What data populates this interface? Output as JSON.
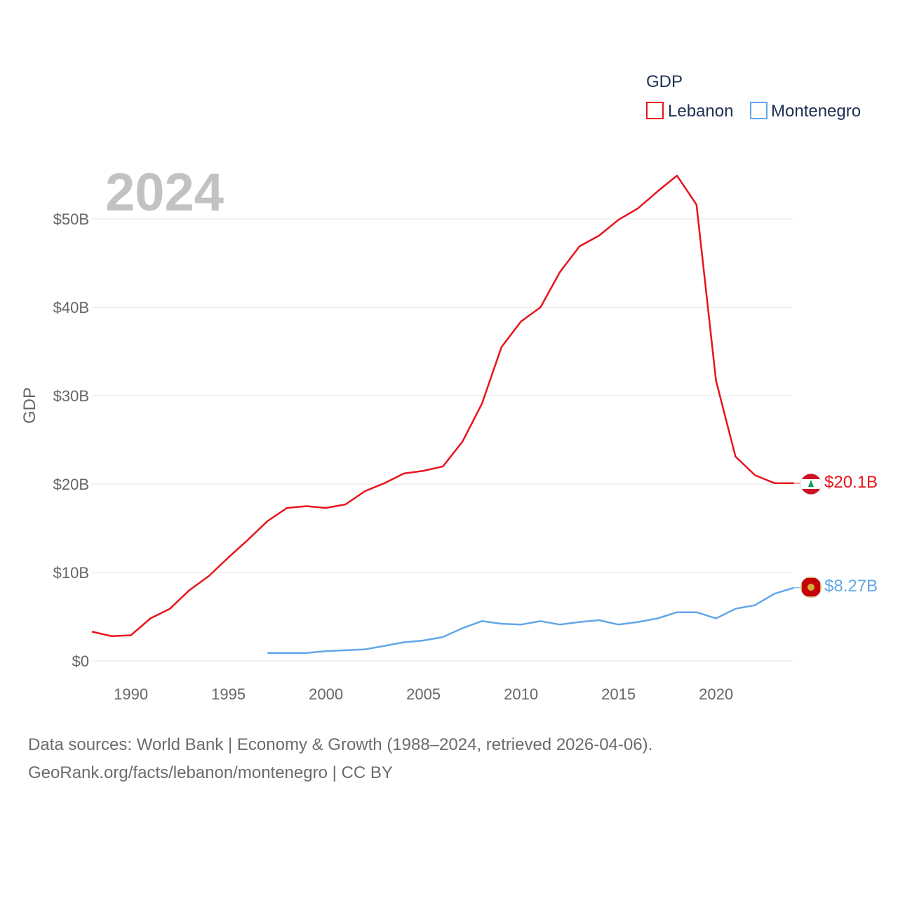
{
  "chart_data": {
    "type": "line",
    "year_label": "2024",
    "ylabel": "GDP",
    "xlabel": "",
    "legend_title": "GDP",
    "legend_position": "top-right",
    "xlim": [
      1988,
      2024
    ],
    "ylim": [
      0,
      55
    ],
    "y_ticks": [
      {
        "value": 0,
        "label": "$0"
      },
      {
        "value": 10,
        "label": "$10B"
      },
      {
        "value": 20,
        "label": "$20B"
      },
      {
        "value": 30,
        "label": "$30B"
      },
      {
        "value": 40,
        "label": "$40B"
      },
      {
        "value": 50,
        "label": "$50B"
      }
    ],
    "x_ticks": [
      {
        "value": 1990,
        "label": "1990"
      },
      {
        "value": 1995,
        "label": "1995"
      },
      {
        "value": 2000,
        "label": "2000"
      },
      {
        "value": 2005,
        "label": "2005"
      },
      {
        "value": 2010,
        "label": "2010"
      },
      {
        "value": 2015,
        "label": "2015"
      },
      {
        "value": 2020,
        "label": "2020"
      }
    ],
    "series": [
      {
        "name": "Lebanon",
        "color": "#e8141c",
        "end_label": "$20.1B",
        "x": [
          1988,
          1989,
          1990,
          1991,
          1992,
          1993,
          1994,
          1995,
          1996,
          1997,
          1998,
          1999,
          2000,
          2001,
          2002,
          2003,
          2004,
          2005,
          2006,
          2007,
          2008,
          2009,
          2010,
          2011,
          2012,
          2013,
          2014,
          2015,
          2016,
          2017,
          2018,
          2019,
          2020,
          2021,
          2022,
          2023,
          2024
        ],
        "values": [
          3.3,
          2.8,
          2.9,
          4.8,
          5.9,
          8.0,
          9.6,
          11.7,
          13.7,
          15.8,
          17.3,
          17.5,
          17.3,
          17.7,
          19.2,
          20.1,
          21.2,
          21.5,
          22.0,
          24.8,
          29.1,
          35.5,
          38.4,
          40.0,
          44.0,
          46.9,
          48.1,
          49.9,
          51.2,
          53.1,
          54.9,
          51.6,
          31.7,
          23.1,
          21.0,
          20.1,
          20.1
        ]
      },
      {
        "name": "Montenegro",
        "color": "#62a7e8",
        "end_label": "$8.27B",
        "x": [
          1997,
          1998,
          1999,
          2000,
          2001,
          2002,
          2003,
          2004,
          2005,
          2006,
          2007,
          2008,
          2009,
          2010,
          2011,
          2012,
          2013,
          2014,
          2015,
          2016,
          2017,
          2018,
          2019,
          2020,
          2021,
          2022,
          2023,
          2024
        ],
        "values": [
          0.9,
          0.9,
          0.9,
          1.1,
          1.2,
          1.3,
          1.7,
          2.1,
          2.3,
          2.7,
          3.7,
          4.5,
          4.2,
          4.1,
          4.5,
          4.1,
          4.4,
          4.6,
          4.1,
          4.4,
          4.8,
          5.5,
          5.5,
          4.8,
          5.9,
          6.3,
          7.6,
          8.27
        ]
      }
    ]
  },
  "footer": {
    "line1": "Data sources: World Bank | Economy & Growth (1988–2024, retrieved 2026-04-06).",
    "line2": "GeoRank.org/facts/lebanon/montenegro | CC BY"
  }
}
